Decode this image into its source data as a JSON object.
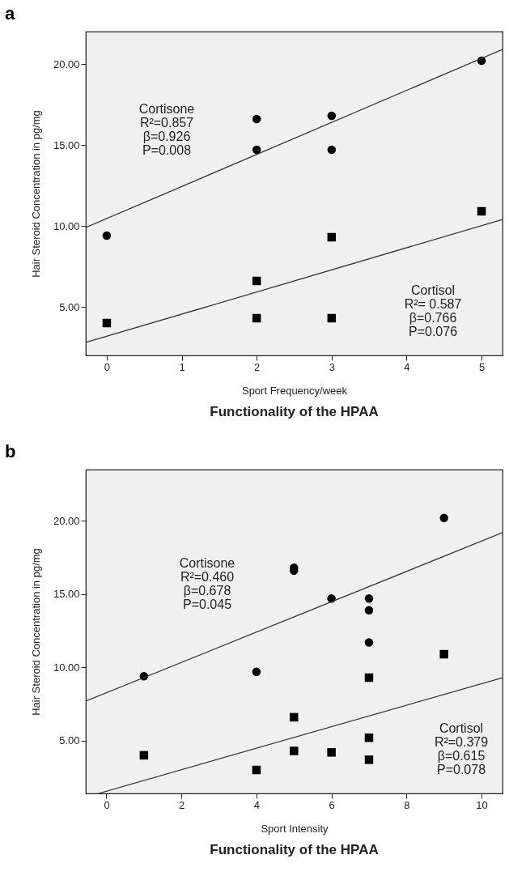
{
  "chart_data": [
    {
      "type": "scatter",
      "title": "a",
      "xlabel": "Sport Frequency/week",
      "ylabel": "Hair Steroid Concentration in pg/mg",
      "xlim": [
        -0.28,
        5.28
      ],
      "xticks": [
        0,
        1,
        2,
        3,
        4,
        5
      ],
      "ylim": [
        2.0,
        22.0
      ],
      "yticks": [
        {
          "value": 5,
          "label": "5.00"
        },
        {
          "value": 10,
          "label": "10.00"
        },
        {
          "value": 15,
          "label": "15.00"
        },
        {
          "value": 20,
          "label": "20.00"
        }
      ],
      "grid": false,
      "annotations": [
        "Cortisone\nR²=0.857\nβ=0.926\nP=0.008",
        "Cortisol\nR²= 0.587\nβ=0.766\nP=0.076",
        "Functionality of the HPAA"
      ],
      "series": [
        {
          "type": "scatter",
          "marker": "circle",
          "color": "#000000",
          "x": [
            0,
            2,
            2,
            3,
            3,
            5
          ],
          "values": [
            9.4,
            16.6,
            14.7,
            16.8,
            14.7,
            20.2
          ]
        },
        {
          "type": "scatter",
          "marker": "square",
          "color": "#000000",
          "x": [
            0,
            2,
            2,
            3,
            3,
            5
          ],
          "values": [
            4.0,
            6.6,
            4.3,
            9.3,
            4.3,
            10.9
          ]
        },
        {
          "type": "line",
          "marker": "none",
          "color": "#333333",
          "x": [
            -0.28,
            5.28
          ],
          "values": [
            9.9,
            20.9
          ]
        },
        {
          "type": "line",
          "marker": "none",
          "color": "#333333",
          "x": [
            -0.28,
            5.28
          ],
          "values": [
            2.8,
            10.4
          ]
        }
      ]
    },
    {
      "type": "scatter",
      "title": "b",
      "xlabel": "Sport Intensity",
      "ylabel": "Hair Steroid Concentration in pg/mg",
      "xlim": [
        -0.55,
        10.56
      ],
      "xticks": [
        0,
        2,
        4,
        6,
        8,
        10
      ],
      "ylim": [
        1.4,
        23.5
      ],
      "yticks": [
        {
          "value": 5,
          "label": "5.00"
        },
        {
          "value": 10,
          "label": "10.00"
        },
        {
          "value": 15,
          "label": "15.00"
        },
        {
          "value": 20,
          "label": "20.00"
        }
      ],
      "grid": false,
      "annotations": [
        "Cortisone\nR²=0.460\nβ=0.678\nP=0.045",
        "Cortisol\nR²=0.379\nβ=0.615\nP=0.078",
        "Functionality of the HPAA"
      ],
      "series": [
        {
          "type": "scatter",
          "marker": "circle",
          "color": "#000000",
          "x": [
            1,
            4,
            5,
            5,
            6,
            7,
            7,
            7,
            9
          ],
          "values": [
            9.4,
            9.7,
            16.8,
            16.6,
            14.7,
            14.7,
            13.9,
            11.7,
            20.2
          ]
        },
        {
          "type": "scatter",
          "marker": "square",
          "color": "#000000",
          "x": [
            1,
            4,
            5,
            5,
            6,
            7,
            7,
            7,
            9
          ],
          "values": [
            4.0,
            3.0,
            6.6,
            4.3,
            4.2,
            9.3,
            5.2,
            3.7,
            10.9
          ]
        },
        {
          "type": "line",
          "marker": "none",
          "color": "#333333",
          "x": [
            -0.55,
            10.56
          ],
          "values": [
            7.7,
            19.2
          ]
        },
        {
          "type": "line",
          "marker": "none",
          "color": "#333333",
          "x": [
            -0.21,
            10.56
          ],
          "values": [
            1.4,
            9.3
          ]
        }
      ]
    }
  ]
}
